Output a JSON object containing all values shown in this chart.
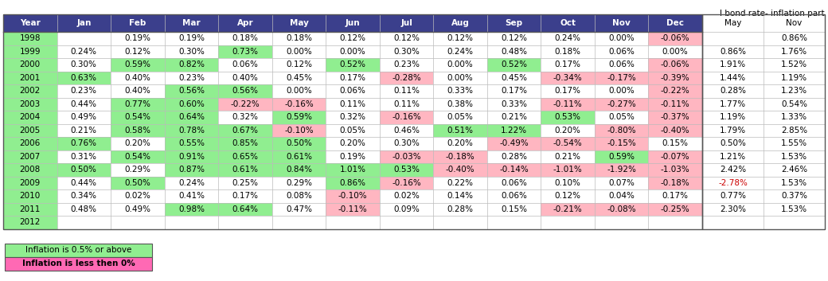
{
  "title": "I bond rate- inflation part",
  "header": [
    "Year",
    "Jan",
    "Feb",
    "Mar",
    "Apr",
    "May",
    "Jun",
    "Jul",
    "Aug",
    "Sep",
    "Oct",
    "Nov",
    "Dec",
    "May",
    "Nov"
  ],
  "rows": [
    [
      "1998",
      "",
      "0.19%",
      "0.19%",
      "0.18%",
      "0.18%",
      "0.12%",
      "0.12%",
      "0.12%",
      "0.12%",
      "0.24%",
      "0.00%",
      "-0.06%",
      "",
      "0.86%"
    ],
    [
      "1999",
      "0.24%",
      "0.12%",
      "0.30%",
      "0.73%",
      "0.00%",
      "0.00%",
      "0.30%",
      "0.24%",
      "0.48%",
      "0.18%",
      "0.06%",
      "0.00%",
      "0.86%",
      "1.76%"
    ],
    [
      "2000",
      "0.30%",
      "0.59%",
      "0.82%",
      "0.06%",
      "0.12%",
      "0.52%",
      "0.23%",
      "0.00%",
      "0.52%",
      "0.17%",
      "0.06%",
      "-0.06%",
      "1.91%",
      "1.52%"
    ],
    [
      "2001",
      "0.63%",
      "0.40%",
      "0.23%",
      "0.40%",
      "0.45%",
      "0.17%",
      "-0.28%",
      "0.00%",
      "0.45%",
      "-0.34%",
      "-0.17%",
      "-0.39%",
      "1.44%",
      "1.19%"
    ],
    [
      "2002",
      "0.23%",
      "0.40%",
      "0.56%",
      "0.56%",
      "0.00%",
      "0.06%",
      "0.11%",
      "0.33%",
      "0.17%",
      "0.17%",
      "0.00%",
      "-0.22%",
      "0.28%",
      "1.23%"
    ],
    [
      "2003",
      "0.44%",
      "0.77%",
      "0.60%",
      "-0.22%",
      "-0.16%",
      "0.11%",
      "0.11%",
      "0.38%",
      "0.33%",
      "-0.11%",
      "-0.27%",
      "-0.11%",
      "1.77%",
      "0.54%"
    ],
    [
      "2004",
      "0.49%",
      "0.54%",
      "0.64%",
      "0.32%",
      "0.59%",
      "0.32%",
      "-0.16%",
      "0.05%",
      "0.21%",
      "0.53%",
      "0.05%",
      "-0.37%",
      "1.19%",
      "1.33%"
    ],
    [
      "2005",
      "0.21%",
      "0.58%",
      "0.78%",
      "0.67%",
      "-0.10%",
      "0.05%",
      "0.46%",
      "0.51%",
      "1.22%",
      "0.20%",
      "-0.80%",
      "-0.40%",
      "1.79%",
      "2.85%"
    ],
    [
      "2006",
      "0.76%",
      "0.20%",
      "0.55%",
      "0.85%",
      "0.50%",
      "0.20%",
      "0.30%",
      "0.20%",
      "-0.49%",
      "-0.54%",
      "-0.15%",
      "0.15%",
      "0.50%",
      "1.55%"
    ],
    [
      "2007",
      "0.31%",
      "0.54%",
      "0.91%",
      "0.65%",
      "0.61%",
      "0.19%",
      "-0.03%",
      "-0.18%",
      "0.28%",
      "0.21%",
      "0.59%",
      "-0.07%",
      "1.21%",
      "1.53%"
    ],
    [
      "2008",
      "0.50%",
      "0.29%",
      "0.87%",
      "0.61%",
      "0.84%",
      "1.01%",
      "0.53%",
      "-0.40%",
      "-0.14%",
      "-1.01%",
      "-1.92%",
      "-1.03%",
      "2.42%",
      "2.46%"
    ],
    [
      "2009",
      "0.44%",
      "0.50%",
      "0.24%",
      "0.25%",
      "0.29%",
      "0.86%",
      "-0.16%",
      "0.22%",
      "0.06%",
      "0.10%",
      "0.07%",
      "-0.18%",
      "-2.78%",
      "1.53%"
    ],
    [
      "2010",
      "0.34%",
      "0.02%",
      "0.41%",
      "0.17%",
      "0.08%",
      "-0.10%",
      "0.02%",
      "0.14%",
      "0.06%",
      "0.12%",
      "0.04%",
      "0.17%",
      "0.77%",
      "0.37%"
    ],
    [
      "2011",
      "0.48%",
      "0.49%",
      "0.98%",
      "0.64%",
      "0.47%",
      "-0.11%",
      "0.09%",
      "0.28%",
      "0.15%",
      "-0.21%",
      "-0.08%",
      "-0.25%",
      "2.30%",
      "1.53%"
    ],
    [
      "2012",
      "",
      "",
      "",
      "",
      "",
      "",
      "",
      "",
      "",
      "",
      "",
      "",
      "",
      ""
    ]
  ],
  "header_bg": "#3b3f8c",
  "header_fg": "#ffffff",
  "green_bg": "#90EE90",
  "pink_bg": "#FFB6C1",
  "hot_pink_bg": "#FF69B4",
  "legend_green_text": "Inflation is 0.5% or above",
  "legend_pink_text": "Inflation is less then 0%"
}
